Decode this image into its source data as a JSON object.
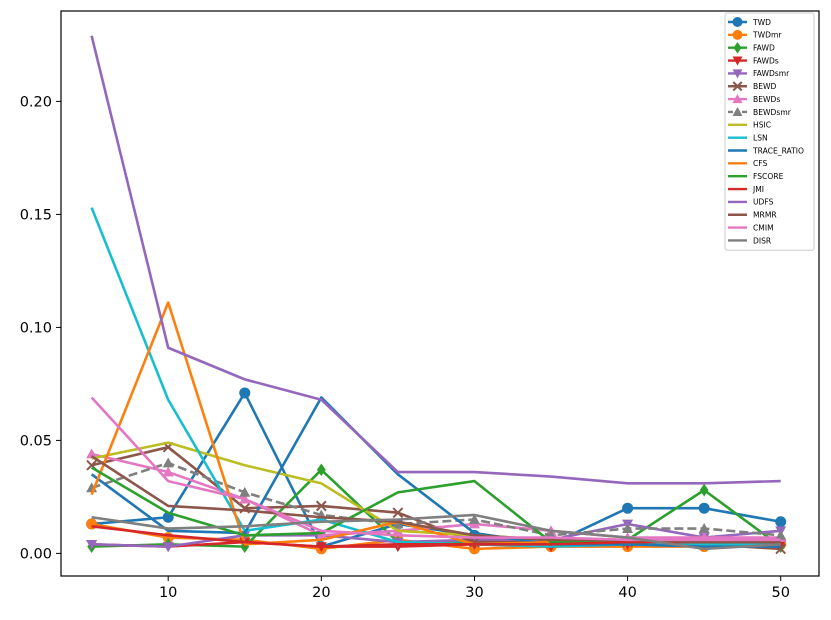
{
  "chart_data": {
    "type": "line",
    "title": "",
    "xlabel": "",
    "ylabel": "",
    "x": [
      5,
      10,
      15,
      20,
      25,
      30,
      35,
      40,
      45,
      50
    ],
    "xlim": [
      3,
      52.5
    ],
    "ylim": [
      -0.01,
      0.24
    ],
    "xticks": [
      10,
      20,
      30,
      40,
      50
    ],
    "xtick_labels": [
      "10",
      "20",
      "30",
      "40",
      "50"
    ],
    "yticks": [
      0.0,
      0.05,
      0.1,
      0.15,
      0.2
    ],
    "ytick_labels": [
      "0.00",
      "0.05",
      "0.10",
      "0.15",
      "0.20"
    ],
    "grid": false,
    "legend_position": "top-right",
    "series": [
      {
        "name": "TWD",
        "color": "#1f77b4",
        "marker": "circle",
        "dash": "solid",
        "values": [
          0.013,
          0.016,
          0.071,
          0.003,
          0.013,
          0.008,
          0.004,
          0.02,
          0.02,
          0.014
        ]
      },
      {
        "name": "TWDmr",
        "color": "#ff7f0e",
        "marker": "circle",
        "dash": "solid",
        "values": [
          0.013,
          0.007,
          0.006,
          0.002,
          0.006,
          0.002,
          0.003,
          0.003,
          0.003,
          0.004
        ]
      },
      {
        "name": "FAWD",
        "color": "#2ca02c",
        "marker": "diamond",
        "dash": "solid",
        "values": [
          0.003,
          0.004,
          0.003,
          0.037,
          0.005,
          0.005,
          0.004,
          0.006,
          0.028,
          0.003
        ]
      },
      {
        "name": "FAWDs",
        "color": "#d62728",
        "marker": "triangle-down",
        "dash": "solid",
        "values": [
          0.004,
          0.003,
          0.005,
          0.003,
          0.003,
          0.004,
          0.003,
          0.004,
          0.004,
          0.004
        ]
      },
      {
        "name": "FAWDsmr",
        "color": "#9467bd",
        "marker": "triangle-down",
        "dash": "solid",
        "values": [
          0.004,
          0.003,
          0.008,
          0.008,
          0.005,
          0.006,
          0.006,
          0.013,
          0.007,
          0.01
        ]
      },
      {
        "name": "BEWD",
        "color": "#8c564b",
        "marker": "x",
        "dash": "solid",
        "values": [
          0.039,
          0.047,
          0.02,
          0.021,
          0.018,
          0.005,
          0.005,
          0.005,
          0.004,
          0.002
        ]
      },
      {
        "name": "BEWDs",
        "color": "#e377c2",
        "marker": "triangle-up",
        "dash": "solid",
        "values": [
          0.044,
          0.036,
          0.024,
          0.008,
          0.01,
          0.013,
          0.01,
          0.007,
          0.007,
          0.007
        ]
      },
      {
        "name": "BEWDsmr",
        "color": "#7f7f7f",
        "marker": "triangle-up",
        "dash": "dashed",
        "values": [
          0.029,
          0.04,
          0.027,
          0.017,
          0.013,
          0.015,
          0.008,
          0.011,
          0.011,
          0.008
        ]
      },
      {
        "name": "HSIC",
        "color": "#bcbd22",
        "marker": "none",
        "dash": "solid",
        "values": [
          0.042,
          0.049,
          0.039,
          0.031,
          0.01,
          0.008,
          0.006,
          0.005,
          0.004,
          0.005
        ]
      },
      {
        "name": "LSN",
        "color": "#17becf",
        "marker": "none",
        "dash": "solid",
        "values": [
          0.153,
          0.068,
          0.01,
          0.015,
          0.005,
          0.004,
          0.003,
          0.004,
          0.004,
          0.004
        ]
      },
      {
        "name": "TRACE_RATIO",
        "color": "#1f77b4",
        "marker": "none",
        "dash": "solid",
        "values": [
          0.035,
          0.01,
          0.009,
          0.069,
          0.035,
          0.009,
          0.004,
          0.004,
          0.003,
          0.003
        ]
      },
      {
        "name": "CFS",
        "color": "#ff7f0e",
        "marker": "none",
        "dash": "solid",
        "values": [
          0.026,
          0.111,
          0.004,
          0.006,
          0.014,
          0.004,
          0.005,
          0.005,
          0.005,
          0.005
        ]
      },
      {
        "name": "FSCORE",
        "color": "#2ca02c",
        "marker": "none",
        "dash": "solid",
        "values": [
          0.038,
          0.018,
          0.008,
          0.009,
          0.027,
          0.032,
          0.005,
          0.005,
          0.005,
          0.005
        ]
      },
      {
        "name": "JMI",
        "color": "#d62728",
        "marker": "none",
        "dash": "solid",
        "values": [
          0.012,
          0.008,
          0.005,
          0.003,
          0.004,
          0.004,
          0.004,
          0.005,
          0.005,
          0.005
        ]
      },
      {
        "name": "UDFS",
        "color": "#9467bd",
        "marker": "none",
        "dash": "solid",
        "values": [
          0.229,
          0.091,
          0.077,
          0.068,
          0.036,
          0.036,
          0.034,
          0.031,
          0.031,
          0.032
        ]
      },
      {
        "name": "MRMR",
        "color": "#8c564b",
        "marker": "none",
        "dash": "solid",
        "values": [
          0.043,
          0.021,
          0.019,
          0.016,
          0.014,
          0.008,
          0.006,
          0.006,
          0.005,
          0.005
        ]
      },
      {
        "name": "CMIM",
        "color": "#e377c2",
        "marker": "none",
        "dash": "solid",
        "values": [
          0.069,
          0.032,
          0.024,
          0.01,
          0.008,
          0.007,
          0.007,
          0.006,
          0.006,
          0.006
        ]
      },
      {
        "name": "DISR",
        "color": "#7f7f7f",
        "marker": "none",
        "dash": "solid",
        "values": [
          0.016,
          0.011,
          0.012,
          0.014,
          0.015,
          0.017,
          0.01,
          0.007,
          0.002,
          0.004
        ]
      }
    ]
  }
}
